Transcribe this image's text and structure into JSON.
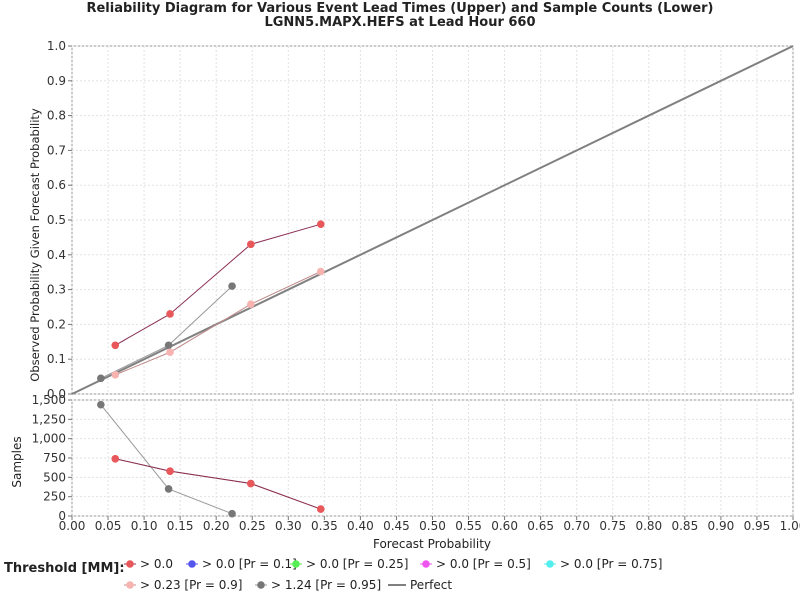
{
  "chart_data": {
    "type": "line",
    "title": "Reliability Diagram for Various Event Lead Times (Upper) and Sample Counts (Lower)",
    "subtitle": "LGNN5.MAPX.HEFS at Lead Hour 660",
    "xlabel": "Forecast Probability",
    "upper": {
      "ylabel": "Observed Probability Given Forecast Probability",
      "ylim": [
        0,
        1
      ],
      "yticks": [
        "0.0",
        "0.1",
        "0.2",
        "0.3",
        "0.4",
        "0.5",
        "0.6",
        "0.7",
        "0.8",
        "0.9",
        "1.0"
      ]
    },
    "lower": {
      "ylabel": "Samples",
      "ylim": [
        0,
        1500
      ],
      "yticks": [
        "0",
        "250",
        "500",
        "750",
        "1,000",
        "1,250",
        "1,500"
      ]
    },
    "xlim": [
      0,
      1
    ],
    "xticks": [
      "0.00",
      "0.05",
      "0.10",
      "0.15",
      "0.20",
      "0.25",
      "0.30",
      "0.35",
      "0.40",
      "0.45",
      "0.50",
      "0.55",
      "0.60",
      "0.65",
      "0.70",
      "0.75",
      "0.80",
      "0.85",
      "0.90",
      "0.95",
      "1.00"
    ],
    "grid": true,
    "legend_title": "Threshold [MM]:",
    "series": [
      {
        "name": "> 0.0",
        "color": "#e8575a",
        "line_color": "#8b2f55",
        "x": [
          0.06,
          0.136,
          0.248,
          0.345
        ],
        "y": [
          0.14,
          0.23,
          0.43,
          0.488
        ],
        "samples": [
          740,
          580,
          420,
          90
        ]
      },
      {
        "name": "> 0.0 [Pr = 0.1]",
        "color": "#5555ee",
        "x": [],
        "y": [],
        "samples": []
      },
      {
        "name": "> 0.0 [Pr = 0.25]",
        "color": "#55ee55",
        "x": [],
        "y": [],
        "samples": []
      },
      {
        "name": "> 0.0 [Pr = 0.5]",
        "color": "#ee55ee",
        "x": [],
        "y": [],
        "samples": []
      },
      {
        "name": "> 0.0 [Pr = 0.75]",
        "color": "#55eeee",
        "x": [],
        "y": [],
        "samples": []
      },
      {
        "name": "> 0.23 [Pr = 0.9]",
        "color": "#f6b3b0",
        "line_color": "#c08a8a",
        "x": [
          0.06,
          0.136,
          0.248,
          0.345
        ],
        "y": [
          0.055,
          0.12,
          0.258,
          0.352
        ],
        "samples": [
          740,
          580,
          420,
          90
        ]
      },
      {
        "name": "> 1.24 [Pr = 0.95]",
        "color": "#777777",
        "line_color": "#9a9a9a",
        "x": [
          0.04,
          0.134,
          0.222
        ],
        "y": [
          0.045,
          0.14,
          0.31
        ],
        "samples": [
          1440,
          350,
          30
        ]
      },
      {
        "name": "Perfect",
        "color": "#808080",
        "type": "line",
        "x": [
          0,
          1
        ],
        "y": [
          0,
          1
        ]
      }
    ]
  }
}
